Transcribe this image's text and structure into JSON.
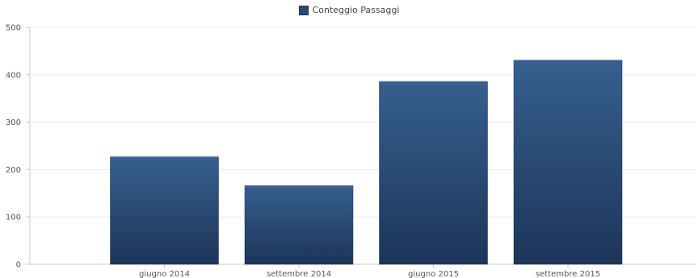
{
  "chart_data": {
    "type": "bar",
    "categories": [
      "giugno 2014",
      "settembre 2014",
      "giugno 2015",
      "settembre 2015"
    ],
    "series": [
      {
        "name": "Conteggio Passaggi",
        "values": [
          227,
          166,
          386,
          431
        ]
      }
    ],
    "ylim": [
      0,
      500
    ],
    "yticks": [
      0,
      100,
      200,
      300,
      400,
      500
    ],
    "grid": true,
    "legend_position": "top-center",
    "bar_color_top": "#365f8f",
    "bar_color_bottom": "#1d3559"
  }
}
